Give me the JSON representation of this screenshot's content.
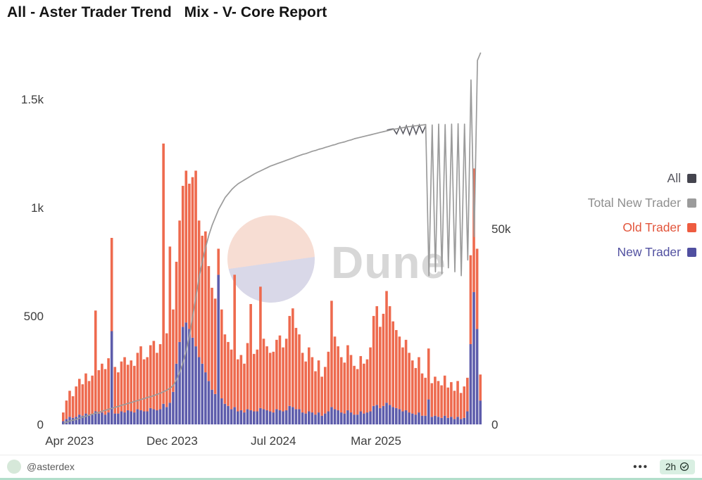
{
  "page": {
    "title": "All - Aster Trader Trend   Mix - V- Core Report"
  },
  "legend": {
    "items": [
      {
        "label": "All",
        "color": "#55555e",
        "swatch": "#44444e"
      },
      {
        "label": "Total New Trader",
        "color": "#8f8f8f",
        "swatch": "#9b9b9b"
      },
      {
        "label": "Old Trader",
        "color": "#e2553b",
        "swatch": "#ee5c40"
      },
      {
        "label": "New Trader",
        "color": "#5150a0",
        "swatch": "#504fa0"
      }
    ]
  },
  "watermark": {
    "text": "Dune",
    "circle_top_color": "#f7ddd3",
    "circle_bottom_color": "#d9d8e8"
  },
  "footer": {
    "author": "@asterdex",
    "more_label": "•••",
    "refreshed": "2h"
  },
  "chart_data": {
    "type": "bar+line",
    "title": "All - Aster Trader Trend Mix - V- Core Report",
    "x_start": "Apr 2023",
    "x_end": "Sep 2025",
    "interval": "weekly",
    "grid": "off",
    "legend_position": "right",
    "x_ticks": [
      {
        "label": "Apr 2023",
        "f": 0.018
      },
      {
        "label": "Dec 2023",
        "f": 0.262
      },
      {
        "label": "Jul 2024",
        "f": 0.503
      },
      {
        "label": "Mar 2025",
        "f": 0.747
      }
    ],
    "left_axis": {
      "max": 1720,
      "ticks": [
        {
          "label": "1.5k",
          "v": 1500
        },
        {
          "label": "1k",
          "v": 1000
        },
        {
          "label": "500",
          "v": 500
        },
        {
          "label": "0",
          "v": 0
        }
      ]
    },
    "right_axis": {
      "max": 95300,
      "ticks": [
        {
          "label": "50k",
          "v": 50000
        },
        {
          "label": "0",
          "v": 0
        }
      ]
    },
    "series": [
      {
        "name": "New Trader",
        "type": "bar",
        "axis": "left",
        "color": "#5d5cab",
        "values": [
          15,
          25,
          35,
          30,
          35,
          45,
          40,
          50,
          40,
          45,
          60,
          50,
          55,
          45,
          55,
          430,
          50,
          50,
          60,
          55,
          65,
          60,
          55,
          70,
          65,
          60,
          60,
          75,
          70,
          65,
          70,
          95,
          80,
          100,
          150,
          280,
          380,
          450,
          470,
          440,
          400,
          360,
          310,
          280,
          240,
          200,
          160,
          140,
          690,
          120,
          95,
          85,
          70,
          80,
          60,
          65,
          55,
          70,
          65,
          60,
          60,
          75,
          70,
          65,
          60,
          55,
          70,
          65,
          60,
          65,
          85,
          80,
          70,
          70,
          55,
          50,
          60,
          55,
          45,
          55,
          40,
          50,
          60,
          80,
          70,
          65,
          55,
          50,
          65,
          55,
          45,
          45,
          60,
          50,
          55,
          60,
          85,
          90,
          75,
          85,
          100,
          90,
          80,
          75,
          70,
          60,
          65,
          55,
          50,
          45,
          55,
          40,
          40,
          115,
          35,
          40,
          35,
          30,
          40,
          30,
          35,
          25,
          35,
          25,
          30,
          60,
          370,
          610,
          440,
          110
        ]
      },
      {
        "name": "Old Trader",
        "type": "bar",
        "stacked_on": "New Trader",
        "axis": "left",
        "color": "#ee6a4e",
        "values": [
          40,
          85,
          120,
          100,
          140,
          165,
          145,
          185,
          160,
          180,
          465,
          200,
          225,
          210,
          250,
          430,
          215,
          190,
          230,
          255,
          210,
          235,
          215,
          260,
          295,
          240,
          250,
          290,
          315,
          265,
          300,
          1200,
          340,
          720,
          380,
          470,
          560,
          650,
          700,
          670,
          740,
          810,
          630,
          590,
          650,
          530,
          470,
          440,
          120,
          410,
          320,
          295,
          275,
          610,
          240,
          255,
          225,
          305,
          490,
          265,
          285,
          560,
          325,
          295,
          270,
          280,
          320,
          345,
          295,
          330,
          415,
          455,
          375,
          345,
          275,
          240,
          295,
          255,
          200,
          240,
          180,
          215,
          275,
          490,
          335,
          295,
          255,
          235,
          300,
          265,
          225,
          210,
          255,
          230,
          245,
          295,
          415,
          455,
          375,
          425,
          515,
          455,
          395,
          360,
          335,
          295,
          325,
          275,
          245,
          215,
          255,
          195,
          175,
          235,
          155,
          180,
          165,
          150,
          185,
          140,
          160,
          130,
          165,
          120,
          145,
          155,
          410,
          570,
          370,
          120
        ]
      },
      {
        "name": "Total New Trader",
        "type": "line",
        "axis": "right",
        "color": "#9b9b9b",
        "values": [
          300,
          600,
          900,
          1100,
          1300,
          1600,
          1900,
          2100,
          2400,
          2600,
          2900,
          3100,
          3400,
          3600,
          3900,
          4100,
          4400,
          4600,
          4900,
          5100,
          5400,
          5600,
          5900,
          6100,
          6400,
          6600,
          6900,
          7100,
          7400,
          7700,
          8000,
          8400,
          8800,
          9300,
          10000,
          11500,
          13500,
          16000,
          19000,
          23000,
          28000,
          33000,
          38000,
          42000,
          45500,
          48500,
          51000,
          53000,
          55000,
          56500,
          58000,
          59000,
          60000,
          60800,
          61500,
          62000,
          62500,
          63000,
          63500,
          64000,
          64400,
          64800,
          65200,
          65600,
          66000,
          66300,
          66600,
          66900,
          67200,
          67500,
          67800,
          68100,
          68400,
          68700,
          69000,
          69200,
          69500,
          69800,
          70000,
          70300,
          70500,
          70800,
          71000,
          71300,
          71500,
          71800,
          72000,
          72200,
          72500,
          72700,
          73000,
          73200,
          73400,
          73600,
          73800,
          74000,
          74200,
          74400,
          74600,
          74800,
          75000,
          75200,
          75400,
          75500,
          75700,
          75800,
          76000,
          76100,
          76200,
          76300,
          76400,
          76500,
          76600,
          38000,
          76500,
          39000,
          76700,
          38500,
          76600,
          40000,
          76700,
          39000,
          76800,
          38000,
          76700,
          42000,
          88000,
          48000,
          93000,
          95000
        ]
      },
      {
        "name": "All",
        "type": "line",
        "axis": "right",
        "color": "#55555e",
        "start_index": 100,
        "values": [
          75200,
          75400,
          75500,
          74200,
          76100,
          74300,
          76300,
          74000,
          76400,
          74200,
          76500,
          74500,
          76300
        ]
      }
    ]
  }
}
